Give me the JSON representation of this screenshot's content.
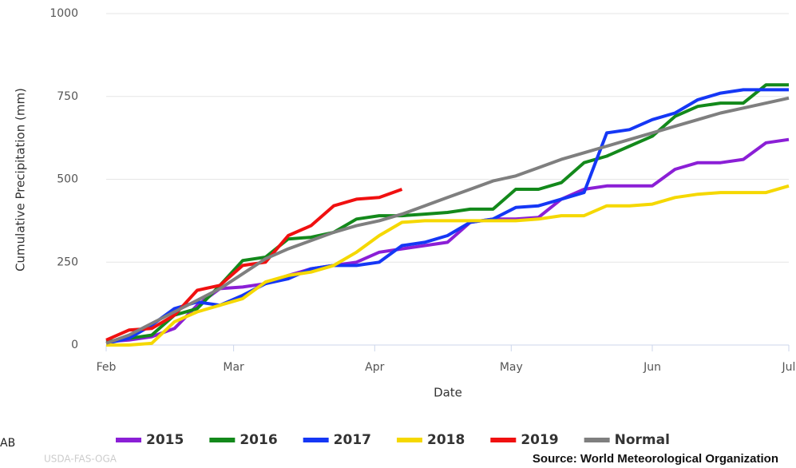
{
  "chart_data": {
    "type": "line",
    "y_label": "Cumulative Precipitation (mm)",
    "x_label": "Date",
    "source": "Source: World Meteorological Organization",
    "watermark": "USDA-FAS-OGA",
    "corner_text": "AB",
    "x": [
      0,
      5,
      10,
      15,
      20,
      25,
      30,
      35,
      40,
      45,
      50,
      55,
      60,
      65,
      70,
      75,
      80,
      85,
      90,
      95,
      100,
      105,
      110,
      115,
      120,
      125,
      130,
      135,
      140,
      145,
      150
    ],
    "xlim": [
      0,
      150
    ],
    "xticks": [
      {
        "value": 0,
        "label": "Feb"
      },
      {
        "value": 28,
        "label": "Mar"
      },
      {
        "value": 59,
        "label": "Apr"
      },
      {
        "value": 89,
        "label": "May"
      },
      {
        "value": 120,
        "label": "Jun"
      },
      {
        "value": 150,
        "label": "Jul"
      }
    ],
    "ylim": [
      0,
      1000
    ],
    "yticks": [
      0,
      250,
      500,
      750,
      1000
    ],
    "grid": true,
    "legend": "bottom",
    "series": [
      {
        "name": "2015",
        "color": "#8b1fd6",
        "values": [
          10,
          15,
          25,
          50,
          120,
          170,
          175,
          185,
          210,
          230,
          240,
          250,
          280,
          290,
          300,
          310,
          370,
          380,
          380,
          385,
          440,
          470,
          480,
          480,
          480,
          530,
          550,
          550,
          560,
          610,
          620
        ]
      },
      {
        "name": "2016",
        "color": "#13891b",
        "values": [
          10,
          20,
          30,
          90,
          110,
          180,
          255,
          265,
          320,
          325,
          340,
          380,
          390,
          390,
          395,
          400,
          410,
          410,
          470,
          470,
          490,
          550,
          570,
          600,
          630,
          690,
          720,
          730,
          730,
          785,
          785
        ]
      },
      {
        "name": "2017",
        "color": "#1537f5",
        "values": [
          5,
          20,
          60,
          110,
          130,
          120,
          150,
          185,
          200,
          230,
          240,
          240,
          250,
          300,
          310,
          330,
          370,
          380,
          415,
          420,
          440,
          460,
          640,
          650,
          680,
          700,
          740,
          760,
          770,
          770,
          770
        ]
      },
      {
        "name": "2018",
        "color": "#f5d800",
        "values": [
          0,
          0,
          5,
          70,
          100,
          120,
          140,
          190,
          210,
          220,
          240,
          280,
          330,
          370,
          375,
          375,
          375,
          375,
          375,
          380,
          390,
          390,
          420,
          420,
          425,
          445,
          455,
          460,
          460,
          460,
          480
        ]
      },
      {
        "name": "2019",
        "color": "#f01010",
        "values": [
          15,
          45,
          50,
          90,
          165,
          180,
          240,
          250,
          330,
          360,
          420,
          440,
          445,
          470,
          null,
          null,
          null,
          null,
          null,
          null,
          null,
          null,
          null,
          null,
          null,
          null,
          null,
          null,
          null,
          null,
          null
        ]
      },
      {
        "name": "Normal",
        "color": "#7f7f7f",
        "values": [
          5,
          30,
          65,
          100,
          135,
          170,
          215,
          260,
          290,
          315,
          340,
          360,
          375,
          395,
          420,
          445,
          470,
          495,
          510,
          535,
          560,
          580,
          600,
          620,
          640,
          660,
          680,
          700,
          715,
          730,
          745
        ]
      }
    ]
  }
}
